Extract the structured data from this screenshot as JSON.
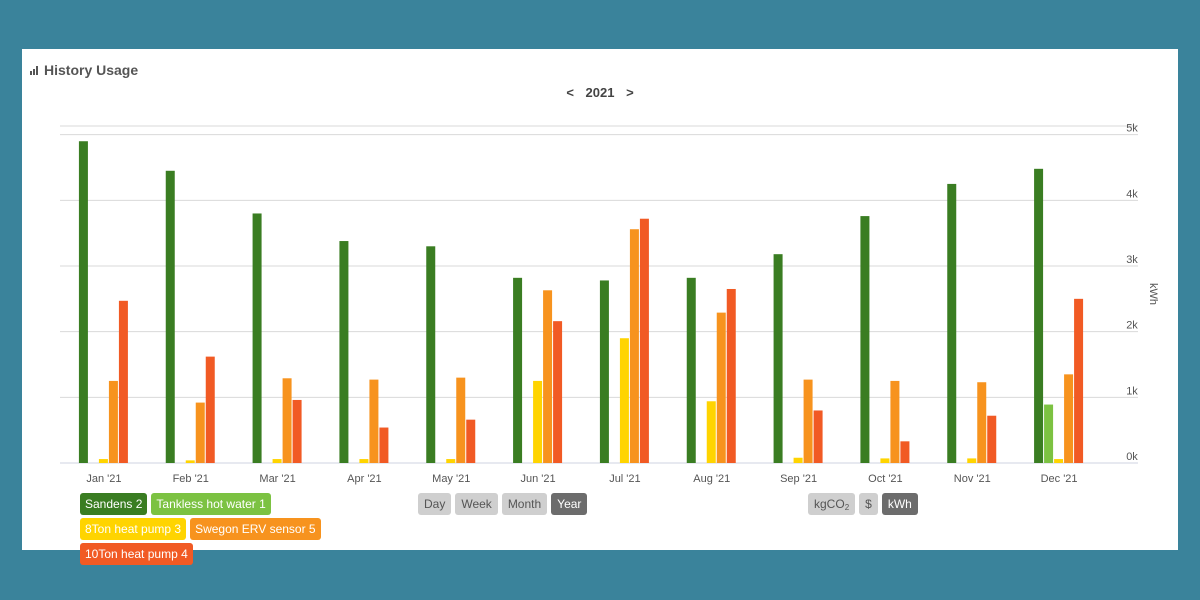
{
  "header": {
    "title": "History Usage",
    "icon": "bar-chart-icon"
  },
  "nav": {
    "prev": "<",
    "year": "2021",
    "next": ">"
  },
  "chart_data": {
    "type": "bar",
    "categories": [
      "Jan '21",
      "Feb '21",
      "Mar '21",
      "Apr '21",
      "May '21",
      "Jun '21",
      "Jul '21",
      "Aug '21",
      "Sep '21",
      "Oct '21",
      "Nov '21",
      "Dec '21"
    ],
    "series": [
      {
        "name": "Sandens 2",
        "color": "#3a7d22",
        "values": [
          4900,
          4450,
          3800,
          3380,
          3300,
          2820,
          2780,
          2820,
          3180,
          3760,
          4250,
          4480
        ]
      },
      {
        "name": "Tankless hot water 1",
        "color": "#7cc242",
        "values": [
          0,
          0,
          0,
          0,
          0,
          0,
          0,
          0,
          0,
          0,
          0,
          890
        ]
      },
      {
        "name": "8Ton heat pump 3",
        "color": "#ffd400",
        "values": [
          60,
          40,
          60,
          60,
          60,
          1250,
          1900,
          940,
          80,
          70,
          70,
          60
        ]
      },
      {
        "name": "Swegon ERV sensor 5",
        "color": "#f7931e",
        "values": [
          1250,
          920,
          1290,
          1270,
          1300,
          2630,
          3560,
          2290,
          1270,
          1250,
          1230,
          1350
        ]
      },
      {
        "name": "10Ton heat pump 4",
        "color": "#f15a24",
        "values": [
          2470,
          1620,
          960,
          540,
          660,
          2160,
          3720,
          2650,
          800,
          330,
          720,
          2500
        ]
      }
    ],
    "yticks": [
      "0k",
      "1k",
      "2k",
      "3k",
      "4k",
      "5k"
    ],
    "ylim": [
      0,
      6000
    ],
    "ylabel": "kWh",
    "legend_position": "bottom-left"
  },
  "controls": {
    "range": [
      {
        "label": "Day",
        "active": false
      },
      {
        "label": "Week",
        "active": false
      },
      {
        "label": "Month",
        "active": false
      },
      {
        "label": "Year",
        "active": true
      }
    ],
    "units": {
      "co2_main": "kgCO",
      "co2_sub": "2",
      "dollar": "$",
      "kwh": "kWh",
      "active": "kWh"
    }
  }
}
